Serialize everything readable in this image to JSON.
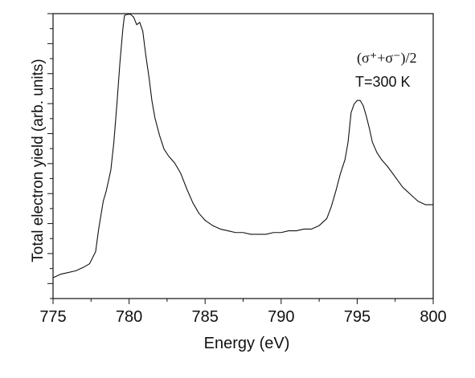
{
  "chart_data": {
    "type": "line",
    "xlabel": "Energy (eV)",
    "ylabel": "Total electron yield (arb. units)",
    "xlim": [
      775,
      800
    ],
    "x_ticks": [
      775,
      780,
      785,
      790,
      795,
      800
    ],
    "grid": false,
    "annotations": [
      {
        "text": "(σ⁺+σ⁻)/2"
      },
      {
        "text": "T=300 K"
      }
    ],
    "series": [
      {
        "x": [
          775.0,
          775.5,
          776.0,
          776.5,
          777.0,
          777.4,
          777.8,
          778.0,
          778.3,
          778.5,
          778.8,
          779.0,
          779.2,
          779.4,
          779.6,
          779.7,
          779.9,
          780.1,
          780.3,
          780.5,
          780.7,
          780.9,
          781.1,
          781.3,
          781.5,
          781.7,
          782.0,
          782.3,
          782.6,
          783.0,
          783.4,
          783.8,
          784.2,
          784.6,
          785.0,
          785.5,
          786.0,
          786.5,
          787.0,
          787.5,
          788.0,
          788.5,
          789.0,
          789.5,
          790.0,
          790.5,
          791.0,
          791.5,
          792.0,
          792.5,
          793.0,
          793.3,
          793.6,
          793.9,
          794.2,
          794.4,
          794.6,
          794.8,
          795.0,
          795.2,
          795.4,
          795.6,
          795.8,
          796.0,
          796.3,
          796.6,
          797.0,
          797.5,
          798.0,
          798.5,
          799.0,
          799.5,
          800.0
        ],
        "y": [
          0.06,
          0.07,
          0.075,
          0.08,
          0.09,
          0.1,
          0.135,
          0.2,
          0.28,
          0.31,
          0.37,
          0.45,
          0.56,
          0.68,
          0.78,
          0.815,
          0.818,
          0.818,
          0.81,
          0.788,
          0.795,
          0.77,
          0.7,
          0.64,
          0.57,
          0.52,
          0.47,
          0.43,
          0.41,
          0.39,
          0.36,
          0.315,
          0.275,
          0.245,
          0.225,
          0.21,
          0.2,
          0.195,
          0.19,
          0.19,
          0.185,
          0.185,
          0.185,
          0.19,
          0.19,
          0.195,
          0.195,
          0.2,
          0.2,
          0.21,
          0.23,
          0.265,
          0.31,
          0.36,
          0.4,
          0.45,
          0.535,
          0.56,
          0.57,
          0.57,
          0.555,
          0.525,
          0.49,
          0.45,
          0.42,
          0.4,
          0.38,
          0.35,
          0.32,
          0.3,
          0.28,
          0.27,
          0.27
        ]
      }
    ]
  }
}
